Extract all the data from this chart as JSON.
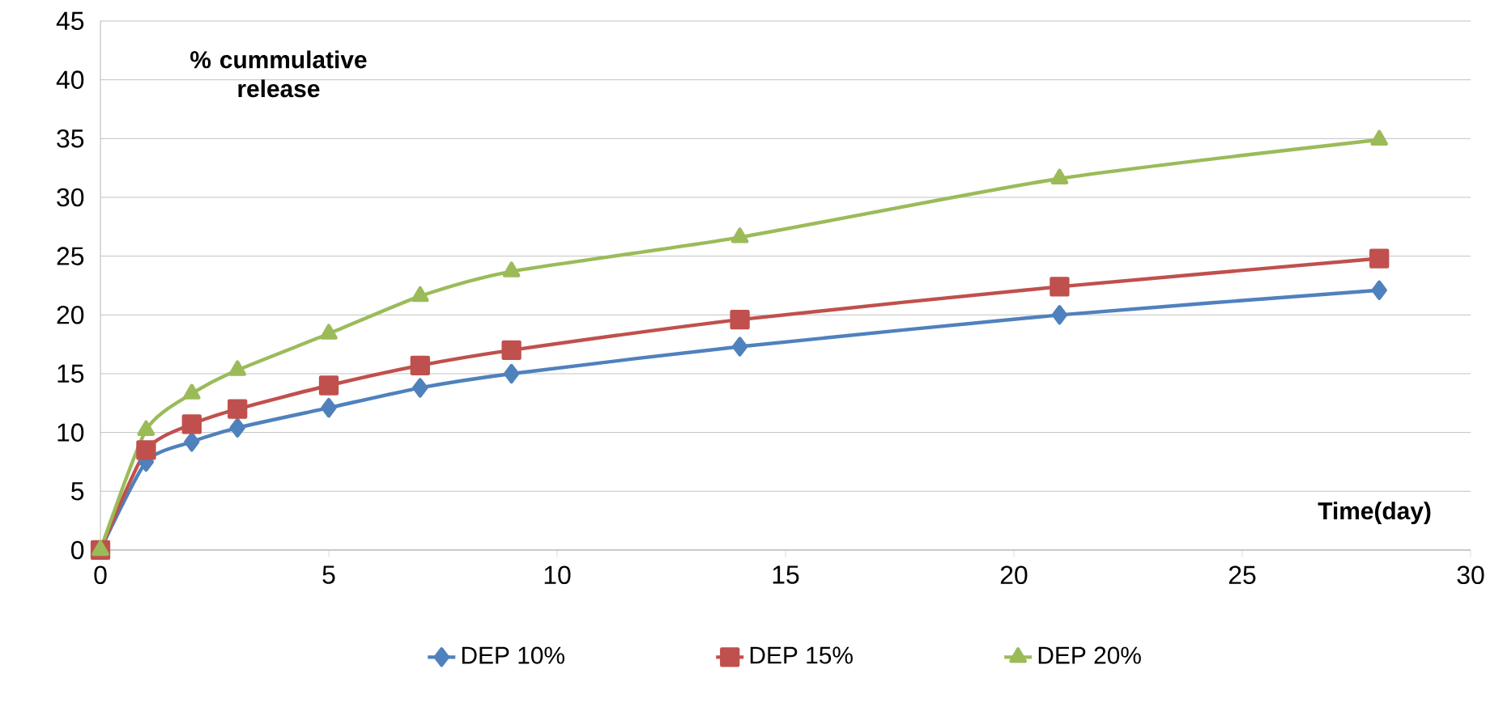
{
  "chart_data": {
    "type": "line",
    "xlabel": "Time(day)",
    "ylabel": "% cummulative release",
    "x": [
      0,
      1,
      2,
      3,
      5,
      7,
      9,
      14,
      21,
      28
    ],
    "series": [
      {
        "name": "DEP 10%",
        "color": "#4f81bd",
        "marker": "diamond",
        "values": [
          0,
          7.5,
          9.2,
          10.4,
          12.1,
          13.8,
          15,
          17.3,
          20,
          22.1
        ]
      },
      {
        "name": "DEP 15%",
        "color": "#c0504d",
        "marker": "square",
        "values": [
          0,
          8.5,
          10.7,
          12,
          14,
          15.7,
          17,
          19.6,
          22.4,
          24.8
        ]
      },
      {
        "name": "DEP 20%",
        "color": "#9bbb59",
        "marker": "triangle",
        "values": [
          0,
          10.2,
          13.3,
          15.3,
          18.4,
          21.6,
          23.7,
          26.6,
          31.6,
          34.9
        ]
      }
    ],
    "xlim": [
      0,
      30
    ],
    "xticks": [
      0,
      5,
      10,
      15,
      20,
      25,
      30
    ],
    "ylim": [
      0,
      45
    ],
    "yticks": [
      0,
      5,
      10,
      15,
      20,
      25,
      30,
      35,
      40,
      45
    ],
    "grid": "y",
    "legend": "bottom",
    "line_style": "solid"
  }
}
